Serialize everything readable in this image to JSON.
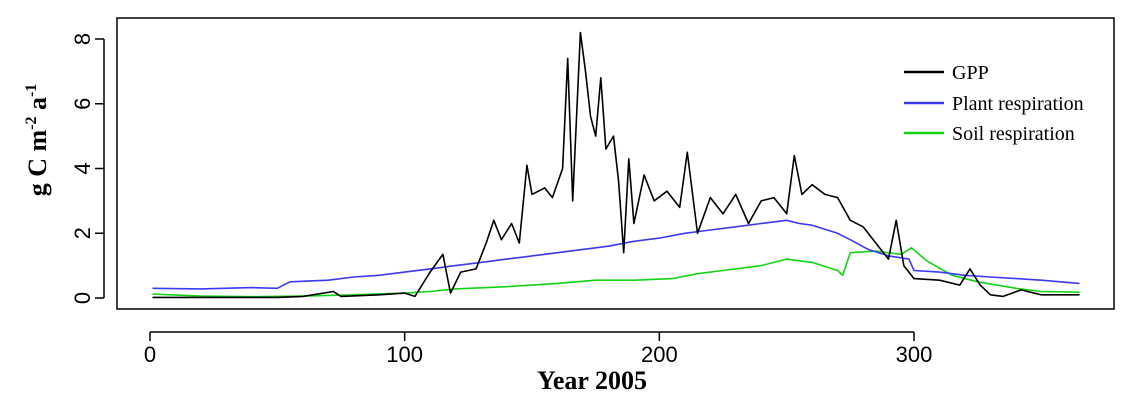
{
  "chart_data": {
    "type": "line",
    "title": "",
    "xlabel": "Year 2005",
    "ylabel": {
      "base": "g C m",
      "sup1": "-2",
      "mid": " a",
      "sup2": "-1"
    },
    "xlim": [
      0,
      370
    ],
    "ylim": [
      -0.4,
      8.6
    ],
    "xticks": [
      0,
      100,
      200,
      300
    ],
    "yticks": [
      0,
      2,
      4,
      6,
      8
    ],
    "grid": false,
    "legend_position": "top-right",
    "series": [
      {
        "name": "GPP",
        "color": "#000000",
        "points": [
          [
            1,
            0.02
          ],
          [
            50,
            0.02
          ],
          [
            60,
            0.05
          ],
          [
            72,
            0.2
          ],
          [
            75,
            0.05
          ],
          [
            90,
            0.1
          ],
          [
            100,
            0.15
          ],
          [
            104,
            0.05
          ],
          [
            110,
            0.8
          ],
          [
            115,
            1.35
          ],
          [
            118,
            0.15
          ],
          [
            122,
            0.8
          ],
          [
            128,
            0.9
          ],
          [
            132,
            1.7
          ],
          [
            135,
            2.4
          ],
          [
            138,
            1.8
          ],
          [
            142,
            2.3
          ],
          [
            145,
            1.7
          ],
          [
            148,
            4.1
          ],
          [
            150,
            3.2
          ],
          [
            155,
            3.4
          ],
          [
            158,
            3.1
          ],
          [
            162,
            4.0
          ],
          [
            164,
            7.4
          ],
          [
            166,
            3.0
          ],
          [
            169,
            8.2
          ],
          [
            171,
            7.0
          ],
          [
            173,
            5.6
          ],
          [
            175,
            5.0
          ],
          [
            177,
            6.8
          ],
          [
            179,
            4.6
          ],
          [
            182,
            5.0
          ],
          [
            184,
            3.6
          ],
          [
            186,
            1.4
          ],
          [
            188,
            4.3
          ],
          [
            190,
            2.3
          ],
          [
            194,
            3.8
          ],
          [
            198,
            3.0
          ],
          [
            203,
            3.3
          ],
          [
            208,
            2.8
          ],
          [
            211,
            4.5
          ],
          [
            215,
            2.0
          ],
          [
            220,
            3.1
          ],
          [
            225,
            2.6
          ],
          [
            230,
            3.2
          ],
          [
            235,
            2.3
          ],
          [
            240,
            3.0
          ],
          [
            245,
            3.1
          ],
          [
            250,
            2.6
          ],
          [
            253,
            4.4
          ],
          [
            256,
            3.2
          ],
          [
            260,
            3.5
          ],
          [
            265,
            3.2
          ],
          [
            270,
            3.1
          ],
          [
            275,
            2.4
          ],
          [
            280,
            2.2
          ],
          [
            286,
            1.6
          ],
          [
            290,
            1.2
          ],
          [
            293,
            2.4
          ],
          [
            296,
            1.0
          ],
          [
            300,
            0.6
          ],
          [
            310,
            0.55
          ],
          [
            318,
            0.4
          ],
          [
            322,
            0.9
          ],
          [
            326,
            0.4
          ],
          [
            330,
            0.1
          ],
          [
            335,
            0.05
          ],
          [
            342,
            0.25
          ],
          [
            350,
            0.1
          ],
          [
            360,
            0.1
          ],
          [
            365,
            0.1
          ]
        ]
      },
      {
        "name": "Plant respiration",
        "color": "#3a3af0",
        "points": [
          [
            1,
            0.3
          ],
          [
            20,
            0.28
          ],
          [
            40,
            0.32
          ],
          [
            50,
            0.3
          ],
          [
            55,
            0.5
          ],
          [
            70,
            0.55
          ],
          [
            80,
            0.65
          ],
          [
            90,
            0.7
          ],
          [
            100,
            0.8
          ],
          [
            110,
            0.9
          ],
          [
            120,
            1.0
          ],
          [
            130,
            1.1
          ],
          [
            140,
            1.2
          ],
          [
            150,
            1.3
          ],
          [
            160,
            1.4
          ],
          [
            170,
            1.5
          ],
          [
            180,
            1.6
          ],
          [
            190,
            1.75
          ],
          [
            200,
            1.85
          ],
          [
            210,
            2.0
          ],
          [
            220,
            2.1
          ],
          [
            230,
            2.2
          ],
          [
            240,
            2.3
          ],
          [
            250,
            2.4
          ],
          [
            255,
            2.3
          ],
          [
            260,
            2.25
          ],
          [
            270,
            2.0
          ],
          [
            275,
            1.8
          ],
          [
            282,
            1.5
          ],
          [
            290,
            1.3
          ],
          [
            298,
            1.2
          ],
          [
            300,
            0.85
          ],
          [
            310,
            0.8
          ],
          [
            320,
            0.7
          ],
          [
            330,
            0.65
          ],
          [
            340,
            0.6
          ],
          [
            350,
            0.55
          ],
          [
            365,
            0.45
          ]
        ]
      },
      {
        "name": "Soil respiration",
        "color": "#14d214",
        "points": [
          [
            1,
            0.12
          ],
          [
            20,
            0.06
          ],
          [
            40,
            0.04
          ],
          [
            60,
            0.06
          ],
          [
            80,
            0.1
          ],
          [
            100,
            0.15
          ],
          [
            110,
            0.2
          ],
          [
            120,
            0.28
          ],
          [
            140,
            0.35
          ],
          [
            160,
            0.45
          ],
          [
            175,
            0.55
          ],
          [
            190,
            0.55
          ],
          [
            205,
            0.6
          ],
          [
            215,
            0.75
          ],
          [
            225,
            0.85
          ],
          [
            240,
            1.0
          ],
          [
            250,
            1.2
          ],
          [
            260,
            1.1
          ],
          [
            270,
            0.85
          ],
          [
            272,
            0.7
          ],
          [
            275,
            1.4
          ],
          [
            285,
            1.45
          ],
          [
            295,
            1.35
          ],
          [
            299,
            1.55
          ],
          [
            305,
            1.15
          ],
          [
            315,
            0.7
          ],
          [
            325,
            0.5
          ],
          [
            340,
            0.3
          ],
          [
            350,
            0.2
          ],
          [
            365,
            0.18
          ]
        ]
      }
    ]
  }
}
